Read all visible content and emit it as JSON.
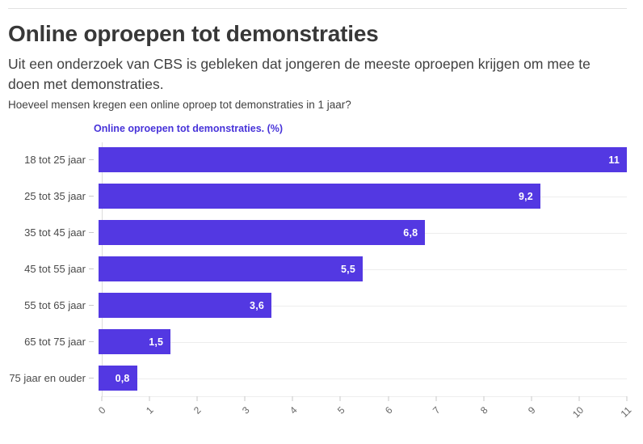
{
  "header": {
    "title": "Online oproepen tot demonstraties",
    "intro": "Uit een onderzoek van CBS is gebleken dat jongeren de meeste oproepen krijgen om mee te doen met demonstraties.",
    "question": "Hoeveel mensen kregen een online oproep tot demonstraties in 1 jaar?"
  },
  "chart_data": {
    "type": "bar",
    "orientation": "horizontal",
    "title": "Online oproepen tot demonstraties. (%)",
    "categories": [
      "18 tot 25 jaar",
      "25 tot 35 jaar",
      "35 tot 45 jaar",
      "45 tot 55 jaar",
      "55 tot 65 jaar",
      "65 tot 75 jaar",
      "75 jaar en ouder"
    ],
    "values": [
      11,
      9.2,
      6.8,
      5.5,
      3.6,
      1.5,
      0.8
    ],
    "value_labels": [
      "11",
      "9,2",
      "6,8",
      "5,5",
      "3,6",
      "1,5",
      "0,8"
    ],
    "xlabel": "",
    "ylabel": "",
    "xlim": [
      0,
      11
    ],
    "x_ticks": [
      0,
      1,
      2,
      3,
      4,
      5,
      6,
      7,
      8,
      9,
      10,
      11
    ],
    "grid": "horizontal row gridlines, light gray",
    "legend_position": "top-left",
    "value_label_position": "inside bar end, white bold",
    "tick_label_rotation_deg": -45
  },
  "colors": {
    "bar": "#5338e2",
    "legend_text": "#4733d9",
    "title_text": "#383838",
    "body_text": "#414141",
    "axis_text": "#666666",
    "gridline": "#ededed",
    "axis_line": "#dddddd",
    "tick": "#c9c9c9",
    "top_rule": "#e2e2e2",
    "value_label": "#ffffff"
  }
}
